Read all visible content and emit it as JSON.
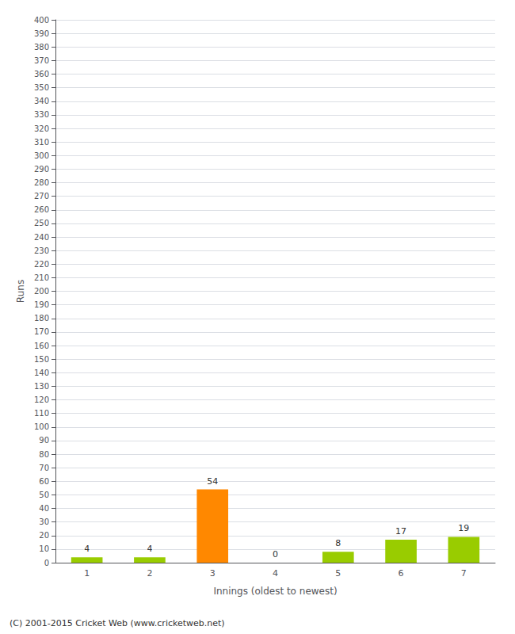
{
  "chart_data": {
    "type": "bar",
    "xlabel": "Innings (oldest to newest)",
    "ylabel": "Runs",
    "categories": [
      "1",
      "2",
      "3",
      "4",
      "5",
      "6",
      "7"
    ],
    "values": [
      4,
      4,
      54,
      0,
      8,
      17,
      19
    ],
    "colors": [
      "#99cc00",
      "#99cc00",
      "#ff8800",
      "#99cc00",
      "#99cc00",
      "#99cc00",
      "#99cc00"
    ],
    "ylim": [
      0,
      400
    ],
    "yticks": [
      0,
      10,
      20,
      30,
      40,
      50,
      60,
      70,
      80,
      90,
      100,
      110,
      120,
      130,
      140,
      150,
      160,
      170,
      180,
      190,
      200,
      210,
      220,
      230,
      240,
      250,
      260,
      270,
      280,
      290,
      300,
      310,
      320,
      330,
      340,
      350,
      360,
      370,
      380,
      390,
      400
    ],
    "grid": true,
    "data_labels": true,
    "annotations": [
      "(C) 2001-2015 Cricket Web (www.cricketweb.net)"
    ]
  }
}
